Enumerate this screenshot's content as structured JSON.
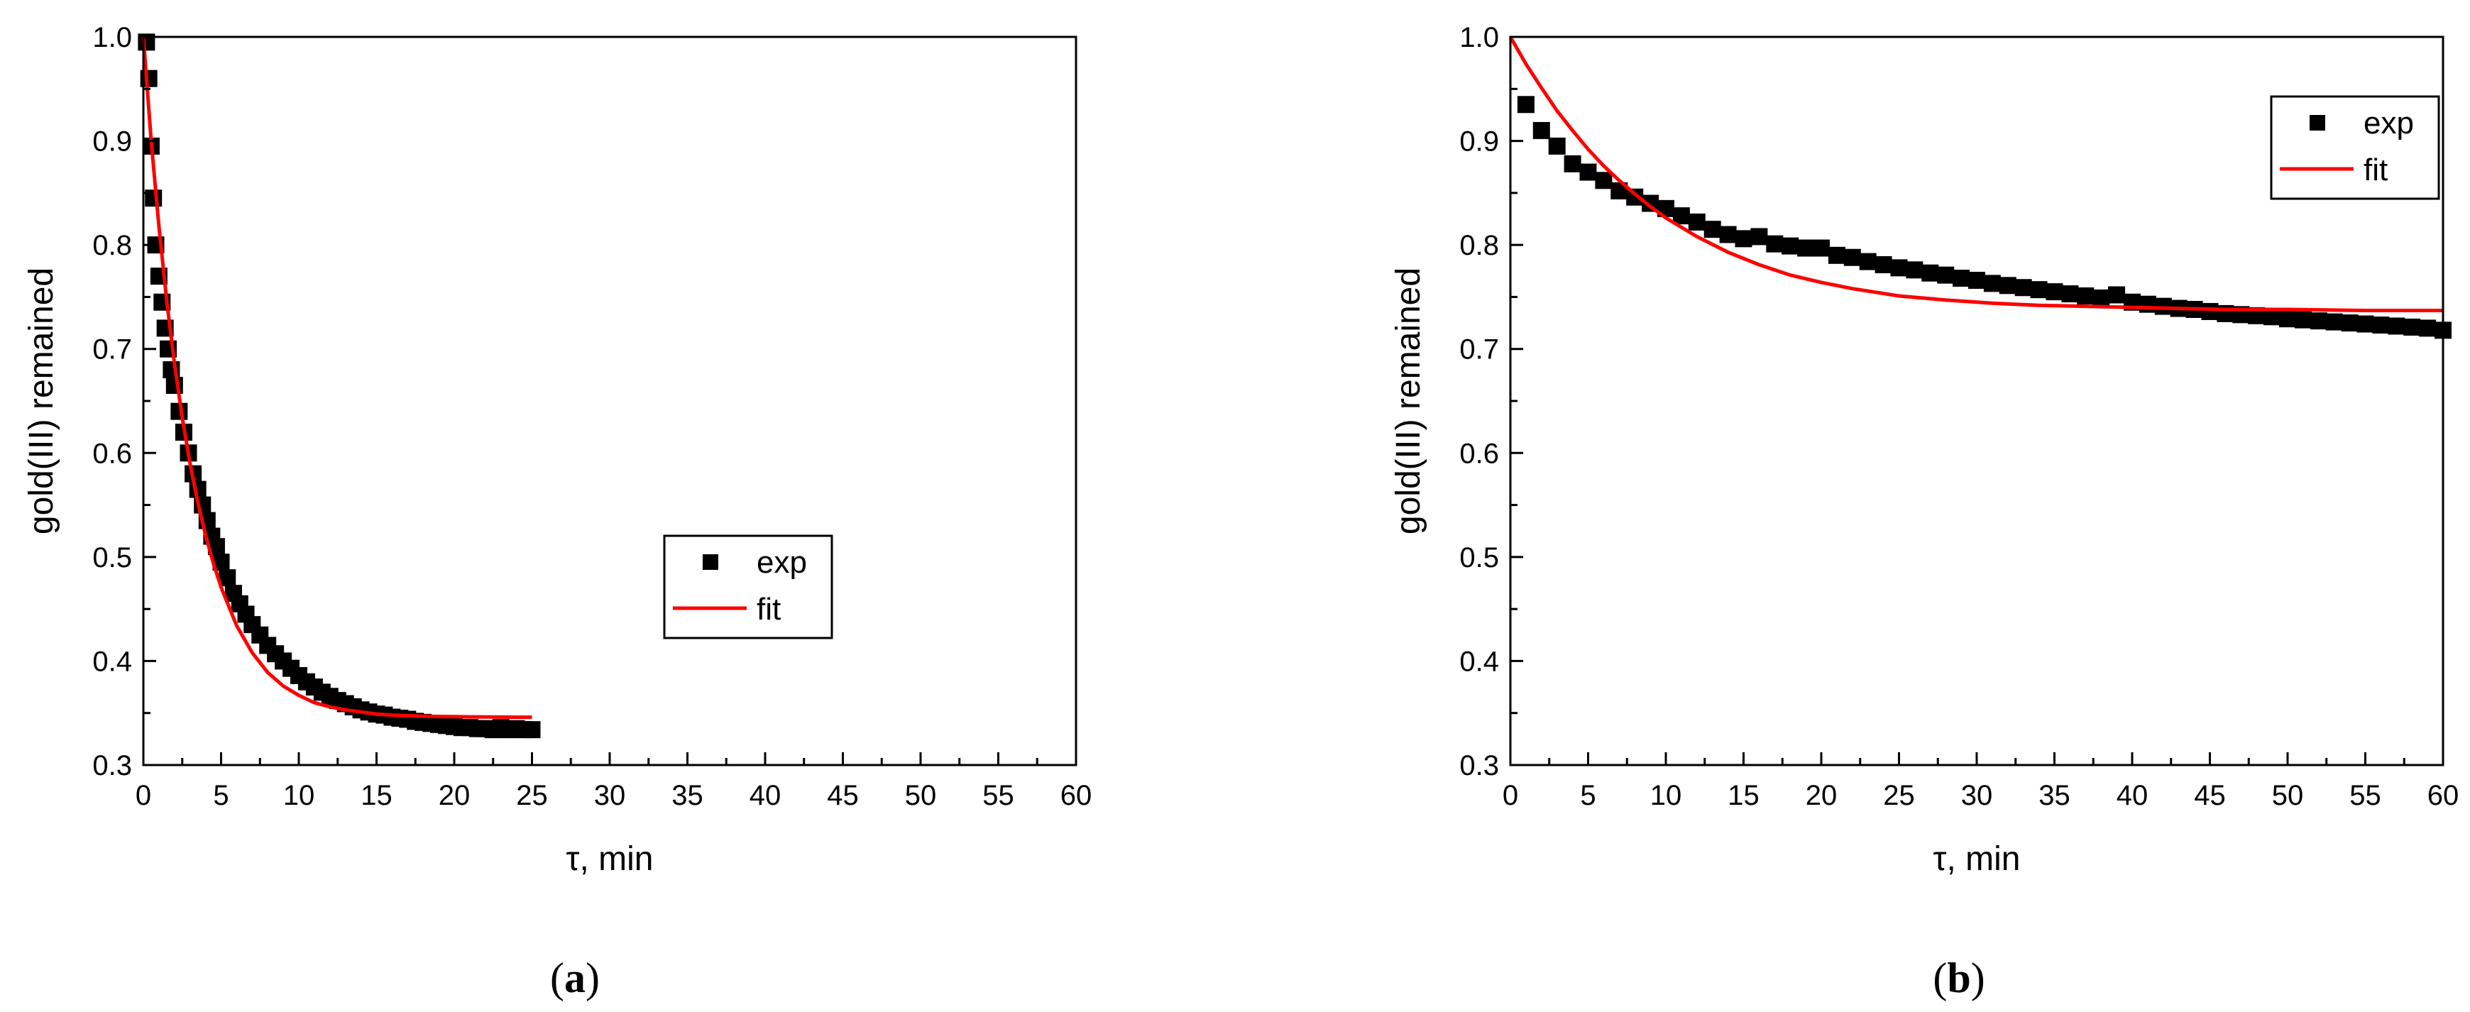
{
  "chart_data": [
    {
      "type": "scatter",
      "panel_label": "a",
      "xlabel": "τ, min",
      "ylabel": "gold(III) remained",
      "xlim": [
        0,
        60
      ],
      "ylim": [
        0.3,
        1.0
      ],
      "xticks": [
        0,
        5,
        10,
        15,
        20,
        25,
        30,
        35,
        40,
        45,
        50,
        55,
        60
      ],
      "yticks": [
        0.3,
        0.4,
        0.5,
        0.6,
        0.7,
        0.8,
        0.9,
        1.0
      ],
      "grid": false,
      "legend": {
        "position": "center-right",
        "entries": [
          "exp",
          "fit"
        ]
      },
      "colors": {
        "exp": "#000000",
        "fit": "#ff0000"
      },
      "series": [
        {
          "name": "exp",
          "kind": "markers",
          "x": [
            0.2,
            0.35,
            0.5,
            0.65,
            0.8,
            1.0,
            1.2,
            1.4,
            1.6,
            1.8,
            2.0,
            2.3,
            2.6,
            2.9,
            3.2,
            3.5,
            3.8,
            4.1,
            4.4,
            4.7,
            5.0,
            5.4,
            5.8,
            6.2,
            6.6,
            7.0,
            7.5,
            8.0,
            8.5,
            9.0,
            9.5,
            10.0,
            10.5,
            11.0,
            11.5,
            12.0,
            12.5,
            13.0,
            13.5,
            14.0,
            14.5,
            15.0,
            15.5,
            16.0,
            16.5,
            17.0,
            17.5,
            18.0,
            18.5,
            19.0,
            19.5,
            20.0,
            20.5,
            21.0,
            21.5,
            22.0,
            22.5,
            23.0,
            23.5,
            24.0,
            24.5,
            25.0
          ],
          "y": [
            0.995,
            0.96,
            0.895,
            0.845,
            0.8,
            0.77,
            0.745,
            0.72,
            0.7,
            0.68,
            0.665,
            0.64,
            0.62,
            0.6,
            0.58,
            0.565,
            0.55,
            0.535,
            0.52,
            0.51,
            0.495,
            0.48,
            0.465,
            0.455,
            0.445,
            0.435,
            0.425,
            0.415,
            0.407,
            0.4,
            0.393,
            0.386,
            0.38,
            0.375,
            0.37,
            0.366,
            0.362,
            0.359,
            0.356,
            0.353,
            0.351,
            0.349,
            0.348,
            0.346,
            0.345,
            0.344,
            0.342,
            0.341,
            0.34,
            0.339,
            0.338,
            0.337,
            0.336,
            0.336,
            0.335,
            0.335,
            0.334,
            0.336,
            0.334,
            0.335,
            0.334,
            0.334
          ]
        },
        {
          "name": "fit",
          "kind": "line",
          "x": [
            0,
            0.5,
            1,
            1.5,
            2,
            2.5,
            3,
            3.5,
            4,
            4.5,
            5,
            6,
            7,
            8,
            9,
            10,
            11,
            12,
            13,
            14,
            15,
            16,
            17,
            18,
            19,
            20,
            21,
            22,
            23,
            24,
            25
          ],
          "y": [
            1.0,
            0.901,
            0.818,
            0.747,
            0.686,
            0.634,
            0.59,
            0.553,
            0.521,
            0.494,
            0.471,
            0.434,
            0.408,
            0.389,
            0.376,
            0.367,
            0.36,
            0.356,
            0.353,
            0.351,
            0.349,
            0.348,
            0.3475,
            0.347,
            0.3467,
            0.3465,
            0.3463,
            0.3462,
            0.3461,
            0.346,
            0.346
          ]
        }
      ]
    },
    {
      "type": "scatter",
      "panel_label": "b",
      "xlabel": "τ, min",
      "ylabel": "gold(III) remained",
      "xlim": [
        0,
        60
      ],
      "ylim": [
        0.3,
        1.0
      ],
      "xticks": [
        0,
        5,
        10,
        15,
        20,
        25,
        30,
        35,
        40,
        45,
        50,
        55,
        60
      ],
      "yticks": [
        0.3,
        0.4,
        0.5,
        0.6,
        0.7,
        0.8,
        0.9,
        1.0
      ],
      "grid": false,
      "legend": {
        "position": "top-right",
        "entries": [
          "exp",
          "fit"
        ]
      },
      "colors": {
        "exp": "#000000",
        "fit": "#ff0000"
      },
      "series": [
        {
          "name": "exp",
          "kind": "markers",
          "x": [
            1,
            2,
            3,
            4,
            5,
            6,
            7,
            8,
            9,
            10,
            11,
            12,
            13,
            14,
            15,
            16,
            17,
            18,
            19,
            20,
            21,
            22,
            23,
            24,
            25,
            26,
            27,
            28,
            29,
            30,
            31,
            32,
            33,
            34,
            35,
            36,
            37,
            38,
            39,
            40,
            41,
            42,
            43,
            44,
            45,
            46,
            47,
            48,
            49,
            50,
            51,
            52,
            53,
            54,
            55,
            56,
            57,
            58,
            59,
            60
          ],
          "y": [
            0.935,
            0.91,
            0.895,
            0.878,
            0.87,
            0.862,
            0.852,
            0.846,
            0.84,
            0.835,
            0.828,
            0.822,
            0.815,
            0.81,
            0.806,
            0.808,
            0.801,
            0.799,
            0.797,
            0.797,
            0.79,
            0.788,
            0.784,
            0.781,
            0.778,
            0.776,
            0.773,
            0.771,
            0.768,
            0.766,
            0.763,
            0.761,
            0.759,
            0.757,
            0.755,
            0.753,
            0.751,
            0.749,
            0.752,
            0.745,
            0.743,
            0.741,
            0.739,
            0.738,
            0.736,
            0.734,
            0.733,
            0.732,
            0.731,
            0.729,
            0.728,
            0.727,
            0.726,
            0.725,
            0.724,
            0.723,
            0.722,
            0.721,
            0.72,
            0.718
          ]
        },
        {
          "name": "fit",
          "kind": "line",
          "x": [
            0,
            1,
            2,
            3,
            4,
            5,
            6,
            7,
            8,
            9,
            10,
            12,
            14,
            16,
            18,
            20,
            22,
            25,
            28,
            31,
            34,
            37,
            40,
            43,
            46,
            50,
            55,
            60
          ],
          "y": [
            1.0,
            0.974,
            0.951,
            0.929,
            0.91,
            0.892,
            0.876,
            0.862,
            0.849,
            0.837,
            0.826,
            0.808,
            0.793,
            0.781,
            0.771,
            0.764,
            0.758,
            0.751,
            0.747,
            0.744,
            0.742,
            0.741,
            0.74,
            0.739,
            0.738,
            0.738,
            0.737,
            0.737
          ]
        }
      ]
    }
  ]
}
